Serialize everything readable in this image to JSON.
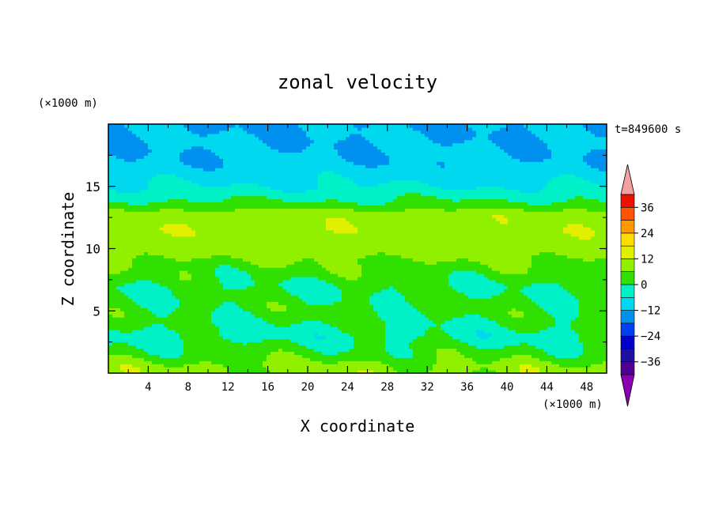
{
  "chart_data": {
    "type": "heatmap",
    "title": "zonal velocity",
    "xlabel": "X coordinate",
    "ylabel": "Z coordinate",
    "x_unit": "(×1000 m)",
    "y_unit": "(×1000 m)",
    "time_label": "t=849600 s",
    "xlim": [
      0,
      50
    ],
    "ylim": [
      0,
      20
    ],
    "x_ticks": [
      4,
      8,
      12,
      16,
      20,
      24,
      28,
      32,
      36,
      40,
      44,
      48
    ],
    "x_tick_labels": [
      "4",
      "8",
      "12",
      "16",
      "20",
      "24",
      "28",
      "32",
      "36",
      "40",
      "44",
      "48"
    ],
    "y_ticks": [
      5,
      10,
      15
    ],
    "y_tick_labels": [
      "5",
      "10",
      "15"
    ],
    "colorbar": {
      "levels": [
        -42,
        -36,
        -30,
        -24,
        -18,
        -12,
        -6,
        0,
        6,
        12,
        18,
        24,
        30,
        36,
        42
      ],
      "tick_values": [
        36,
        24,
        12,
        0,
        -12,
        -24,
        -36
      ],
      "tick_labels": [
        "36",
        "24",
        "12",
        "0",
        "−12",
        "−24",
        "−36"
      ],
      "colors": [
        "#500090",
        "#2010a0",
        "#0000cc",
        "#0040f0",
        "#0090f0",
        "#00d8f0",
        "#00f0c8",
        "#30e000",
        "#90f000",
        "#e0f000",
        "#ffdd00",
        "#ff9900",
        "#ff5500",
        "#ee1100",
        "#cc0000"
      ],
      "under_color": "#8a00b0",
      "over_color": "#f2a0a0"
    },
    "z_profile": [
      {
        "z": 0.5,
        "u": 8
      },
      {
        "z": 1.5,
        "u": 3
      },
      {
        "z": 3,
        "u": -2
      },
      {
        "z": 5,
        "u": 2
      },
      {
        "z": 7,
        "u": 0
      },
      {
        "z": 8.5,
        "u": 4
      },
      {
        "z": 10,
        "u": 9
      },
      {
        "z": 11.5,
        "u": 11
      },
      {
        "z": 12.8,
        "u": 10
      },
      {
        "z": 13.5,
        "u": 2
      },
      {
        "z": 15,
        "u": -6
      },
      {
        "z": 17,
        "u": -11
      },
      {
        "z": 19.5,
        "u": -12
      }
    ]
  }
}
